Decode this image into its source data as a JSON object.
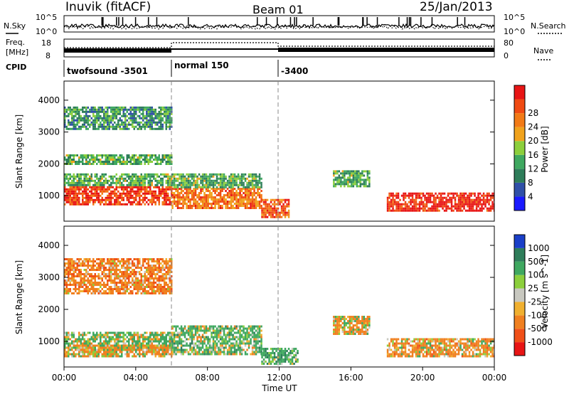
{
  "header": {
    "station": "Inuvik (fitACF)",
    "beam": "Beam 01",
    "date": "25/Jan/2013"
  },
  "noise_panel": {
    "left_label": "N.Sky",
    "right_label": "N.Search",
    "left_ticks": [
      "10^5",
      "10^0"
    ],
    "right_ticks": [
      "10^5",
      "10^0"
    ]
  },
  "freq_panel": {
    "left_label_1": "Freq.",
    "left_label_2": "[MHz]",
    "right_label": "Nave",
    "left_ticks": [
      "18",
      "8"
    ],
    "right_ticks": [
      "80",
      "0"
    ]
  },
  "cpid": {
    "label": "CPID",
    "segments": [
      {
        "text": "twofsound -3501",
        "start_h": 0,
        "end_h": 6
      },
      {
        "text": "normal 150",
        "start_h": 6,
        "end_h": 12
      },
      {
        "text": "-3400",
        "start_h": 12,
        "end_h": 24
      }
    ]
  },
  "x_axis": {
    "label": "Time UT",
    "ticks": [
      "00:00",
      "04:00",
      "08:00",
      "12:00",
      "16:00",
      "20:00",
      "00:00"
    ]
  },
  "y_axis": {
    "label": "Slant Range [km]",
    "ticks": [
      "1000",
      "2000",
      "3000",
      "4000"
    ]
  },
  "power_colorbar": {
    "label": "Power [dB]",
    "ticks": [
      "4",
      "8",
      "12",
      "16",
      "20",
      "24",
      "28"
    ],
    "colors": [
      "#1a1aff",
      "#3050a8",
      "#2e7d5a",
      "#3fa860",
      "#8ccf3c",
      "#f0a21c",
      "#f27a16",
      "#f04a12",
      "#e81515"
    ]
  },
  "velocity_colorbar": {
    "label": "Velocity [m s^-1]",
    "ticks": [
      "1000",
      "500",
      "100",
      "25",
      "-25",
      "-100",
      "-500",
      "-1000"
    ],
    "colors": [
      "#1a3fc8",
      "#2e7d5a",
      "#3fa860",
      "#8ccf3c",
      "#c8c8c0",
      "#f0b030",
      "#f08020",
      "#f05018",
      "#e81515"
    ]
  },
  "chart_data": [
    {
      "type": "heatmap",
      "title": "Power [dB]",
      "xlabel": "Time UT",
      "ylabel": "Slant Range [km]",
      "x_range_hours": [
        0,
        24
      ],
      "ylim_km": [
        200,
        4600
      ],
      "value_range": [
        0,
        30
      ],
      "regions": [
        {
          "t0": 0,
          "t1": 6,
          "r0": 700,
          "r1": 1300,
          "value": 26
        },
        {
          "t0": 0,
          "t1": 6,
          "r0": 1300,
          "r1": 1700,
          "value": 12
        },
        {
          "t0": 6,
          "t1": 11,
          "r0": 600,
          "r1": 1250,
          "value": 22
        },
        {
          "t0": 6,
          "t1": 11,
          "r0": 1250,
          "r1": 1700,
          "value": 12
        },
        {
          "t0": 11,
          "t1": 12.5,
          "r0": 300,
          "r1": 900,
          "value": 24
        },
        {
          "t0": 15,
          "t1": 17,
          "r0": 1300,
          "r1": 1800,
          "value": 12
        },
        {
          "t0": 18,
          "t1": 24,
          "r0": 500,
          "r1": 1100,
          "value": 28
        },
        {
          "t0": 0,
          "t1": 6,
          "r0": 2000,
          "r1": 2300,
          "value": 12
        },
        {
          "t0": 0,
          "t1": 6,
          "r0": 3100,
          "r1": 3800,
          "value": 10
        }
      ]
    },
    {
      "type": "heatmap",
      "title": "Velocity [m s^-1]",
      "xlabel": "Time UT",
      "ylabel": "Slant Range [km]",
      "x_range_hours": [
        0,
        24
      ],
      "ylim_km": [
        200,
        4600
      ],
      "value_range": [
        -1000,
        1000
      ],
      "regions": [
        {
          "t0": 0,
          "t1": 6,
          "r0": 700,
          "r1": 1300,
          "value": 150
        },
        {
          "t0": 0,
          "t1": 6,
          "r0": 500,
          "r1": 900,
          "value": -150
        },
        {
          "t0": 6,
          "t1": 11,
          "r0": 600,
          "r1": 1500,
          "value": 200
        },
        {
          "t0": 11,
          "t1": 13,
          "r0": 300,
          "r1": 800,
          "value": 300
        },
        {
          "t0": 15,
          "t1": 17,
          "r0": 1200,
          "r1": 1800,
          "value": -100
        },
        {
          "t0": 18,
          "t1": 24,
          "r0": 500,
          "r1": 1100,
          "value": -200
        },
        {
          "t0": 0,
          "t1": 6,
          "r0": 2500,
          "r1": 3600,
          "value": -300
        }
      ]
    }
  ]
}
